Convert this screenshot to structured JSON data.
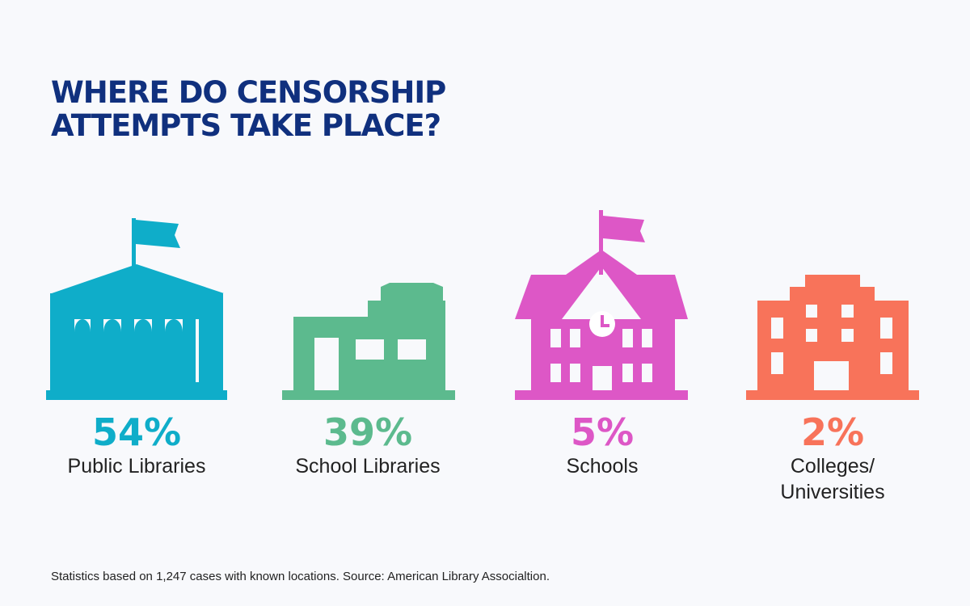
{
  "title": {
    "line1": "WHERE DO CENSORSHIP",
    "line2": "ATTEMPTS TAKE PLACE?"
  },
  "chart_data": {
    "type": "table",
    "title": "WHERE DO CENSORSHIP ATTEMPTS TAKE PLACE?",
    "categories": [
      "Public Libraries",
      "School Libraries",
      "Schools",
      "Colleges/ Universities"
    ],
    "values": [
      54,
      39,
      5,
      2
    ],
    "unit": "%"
  },
  "items": [
    {
      "pct": "54%",
      "label_line1": "Public Libraries",
      "label_line2": "",
      "color": "#0fadc9",
      "icon": "public-library-icon"
    },
    {
      "pct": "39%",
      "label_line1": "School Libraries",
      "label_line2": "",
      "color": "#5cba8e",
      "icon": "school-library-icon"
    },
    {
      "pct": "5%",
      "label_line1": "Schools",
      "label_line2": "",
      "color": "#dd57c6",
      "icon": "school-icon"
    },
    {
      "pct": "2%",
      "label_line1": "Colleges/",
      "label_line2": "Universities",
      "color": "#f8735a",
      "icon": "university-icon"
    }
  ],
  "footnote": "Statistics based on 1,247 cases with known locations. Source: American Library Associaltion.",
  "colors": {
    "title": "#10307e",
    "background": "#f8f9fc",
    "text": "#222222"
  }
}
